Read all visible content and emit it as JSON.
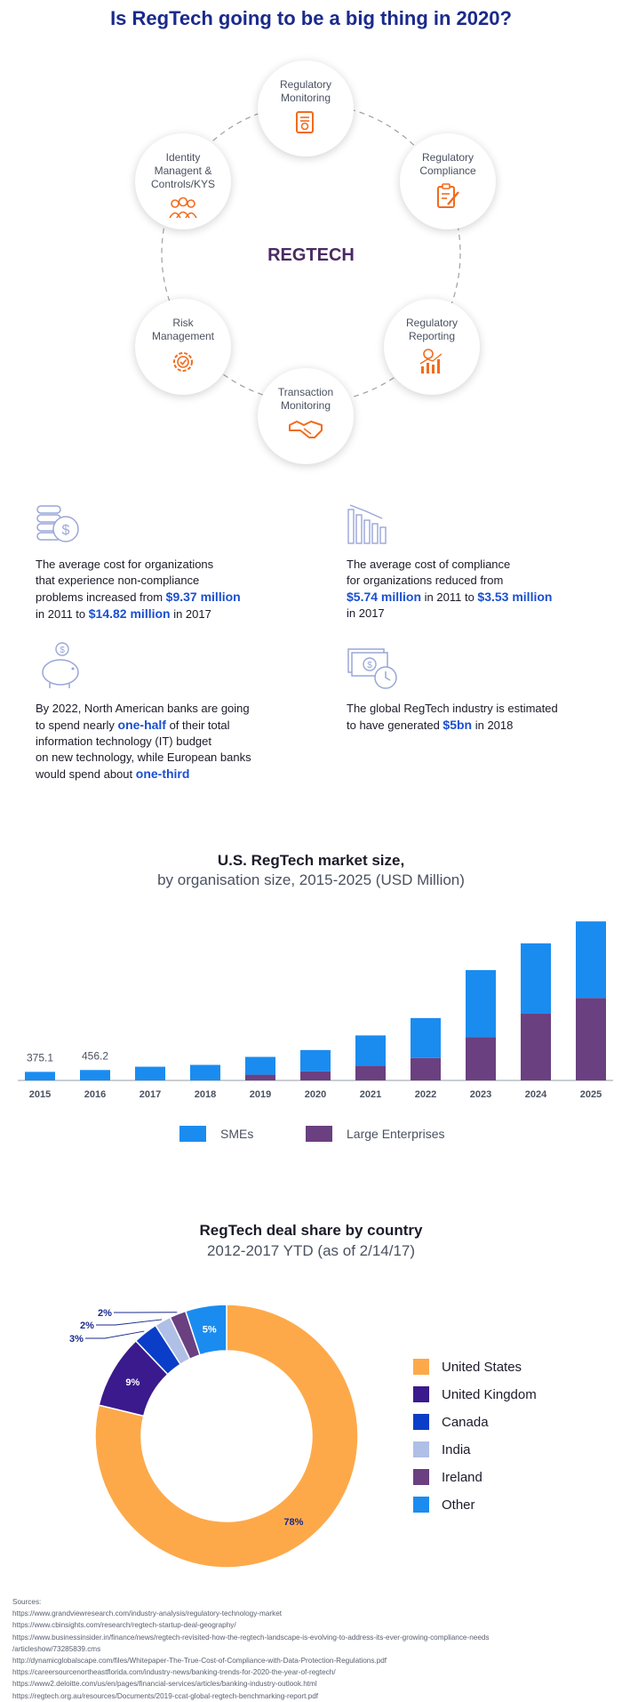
{
  "title": "Is RegTech going to be a big thing in 2020?",
  "cycle": {
    "center": "REGTECH",
    "nodes": [
      {
        "label": "Regulatory Monitoring",
        "icon": "document-icon"
      },
      {
        "label": "Regulatory Compliance",
        "icon": "clipboard-pen-icon"
      },
      {
        "label": "Regulatory Reporting",
        "icon": "chart-report-icon"
      },
      {
        "label": "Transaction Monitoring",
        "icon": "handshake-icon"
      },
      {
        "label": "Risk Management",
        "icon": "gear-check-icon"
      },
      {
        "label": "Identity Managent & Controls/KYS",
        "icon": "people-icon"
      }
    ]
  },
  "stats": [
    {
      "icon": "coins-dollar-icon",
      "parts": [
        "The average cost for organizations",
        "that experience non-compliance",
        "problems increased from ",
        "$9.37 million",
        " in 2011 to ",
        "$14.82 million",
        " in 2017"
      ]
    },
    {
      "icon": "declining-bars-icon",
      "parts": [
        "The average cost of compliance",
        "for organizations reduced from",
        "$5.74 million",
        " in 2011 to ",
        "$3.53 million",
        "in 2017"
      ]
    },
    {
      "icon": "piggy-bank-icon",
      "parts": [
        "By 2022, North American banks are going",
        "to spend nearly ",
        "one-half",
        " of their total",
        "information technology (IT) budget",
        "on new technology, while European banks",
        "would spend about ",
        "one-third"
      ]
    },
    {
      "icon": "money-clock-icon",
      "parts": [
        "The global RegTech industry is estimated",
        "to have generated ",
        "$5bn",
        " in 2018"
      ]
    }
  ],
  "chart_data": [
    {
      "type": "bar",
      "stacked": true,
      "title": "U.S. RegTech market size,",
      "subtitle": "by organisation size, 2015-2025 (USD Million)",
      "categories": [
        "2015",
        "2016",
        "2017",
        "2018",
        "2019",
        "2020",
        "2021",
        "2022",
        "2023",
        "2024",
        "2025"
      ],
      "series": [
        {
          "name": "SMEs",
          "color": "#1a8cf0",
          "values": [
            375.1,
            456.2,
            600,
            680,
            780,
            930,
            1320,
            1750,
            2930,
            3080,
            3350
          ]
        },
        {
          "name": "Large Enterprises",
          "color": "#6a4080",
          "values": [
            0,
            0,
            0,
            0,
            250,
            400,
            650,
            980,
            1900,
            2920,
            3610
          ]
        }
      ],
      "data_labels": [
        "375.1",
        "456.2"
      ],
      "ylim": [
        0,
        7200
      ],
      "legend": "bottom"
    },
    {
      "type": "pie",
      "donut": true,
      "title": "RegTech deal share by country",
      "subtitle": "2012-2017 YTD (as of 2/14/17)",
      "labels": [
        "United States",
        "United Kingdom",
        "Canada",
        "India",
        "Ireland",
        "Other"
      ],
      "values": [
        78,
        9,
        3,
        2,
        2,
        5
      ],
      "value_labels": [
        "78%",
        "9%",
        "3%",
        "2%",
        "2%",
        "5%"
      ],
      "colors": [
        "#fda94a",
        "#3a1a8c",
        "#0a3ec8",
        "#b0bfe6",
        "#6a4080",
        "#1a8cf0"
      ],
      "legend": "right"
    }
  ],
  "sources": [
    "Sources:",
    "https://www.grandviewresearch.com/industry-analysis/regulatory-technology-market",
    "https://www.cbinsights.com/research/regtech-startup-deal-geography/",
    "https://www.businessinsider.in/finance/news/regtech-revisited-how-the-regtech-landscape-is-evolving-to-address-its-ever-growing-compliance-needs",
    "/articleshow/73285839.cms",
    "http://dynamicglobalscape.com/files/Whitepaper-The-True-Cost-of-Compliance-with-Data-Protection-Regulations.pdf",
    "https://careersourcenortheastflorida.com/industry-news/banking-trends-for-2020-the-year-of-regtech/",
    "https://www2.deloitte.com/us/en/pages/financial-services/articles/banking-industry-outlook.html",
    "https://regtech.org.au/resources/Documents/2019-ccat-global-regtech-benchmarking-report.pdf"
  ]
}
